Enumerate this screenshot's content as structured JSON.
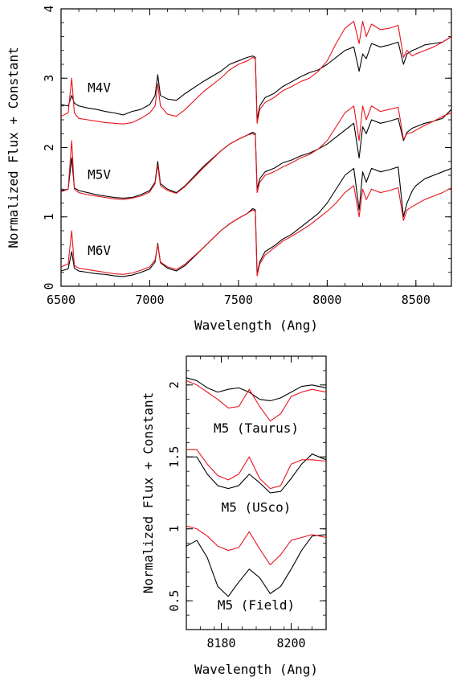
{
  "chart_data": [
    {
      "type": "line",
      "xlabel": "Wavelength (Ang)",
      "ylabel": "Normalized Flux + Constant",
      "xlim": [
        6500,
        8700
      ],
      "ylim": [
        0,
        4
      ],
      "xticks": [
        "6500",
        "7000",
        "7500",
        "8000",
        "8500"
      ],
      "yticks": [
        "0",
        "1",
        "2",
        "3",
        "4"
      ],
      "colors": {
        "black": "#000000",
        "red": "#e8141e"
      },
      "series": [
        {
          "label": "M4V",
          "label_x": 6650,
          "label_y": 2.8,
          "x": [
            6500,
            6540,
            6560,
            6575,
            6600,
            6650,
            6700,
            6750,
            6800,
            6850,
            6900,
            6950,
            7000,
            7030,
            7045,
            7060,
            7100,
            7150,
            7200,
            7300,
            7400,
            7450,
            7500,
            7550,
            7580,
            7595,
            7605,
            7620,
            7650,
            7700,
            7750,
            7800,
            7850,
            7900,
            7950,
            8000,
            8050,
            8100,
            8150,
            8180,
            8200,
            8220,
            8250,
            8300,
            8350,
            8400,
            8430,
            8450,
            8480,
            8500,
            8550,
            8600,
            8650,
            8700
          ],
          "black": [
            2.62,
            2.6,
            2.75,
            2.64,
            2.6,
            2.57,
            2.55,
            2.52,
            2.5,
            2.47,
            2.52,
            2.55,
            2.62,
            2.75,
            3.05,
            2.75,
            2.7,
            2.68,
            2.78,
            2.95,
            3.1,
            3.2,
            3.25,
            3.3,
            3.32,
            3.3,
            2.4,
            2.6,
            2.72,
            2.78,
            2.88,
            2.95,
            3.02,
            3.08,
            3.12,
            3.2,
            3.3,
            3.4,
            3.45,
            3.1,
            3.35,
            3.28,
            3.5,
            3.45,
            3.48,
            3.52,
            3.2,
            3.35,
            3.4,
            3.42,
            3.48,
            3.5,
            3.52,
            3.6
          ],
          "red": [
            2.45,
            2.5,
            3.0,
            2.5,
            2.42,
            2.4,
            2.38,
            2.36,
            2.35,
            2.34,
            2.36,
            2.42,
            2.5,
            2.6,
            2.92,
            2.6,
            2.48,
            2.45,
            2.55,
            2.8,
            3.0,
            3.12,
            3.2,
            3.25,
            3.3,
            3.28,
            2.35,
            2.55,
            2.65,
            2.72,
            2.82,
            2.88,
            2.95,
            3.0,
            3.1,
            3.25,
            3.5,
            3.72,
            3.82,
            3.5,
            3.82,
            3.6,
            3.78,
            3.7,
            3.72,
            3.76,
            3.3,
            3.4,
            3.32,
            3.35,
            3.4,
            3.45,
            3.52,
            3.6
          ]
        },
        {
          "label": "M5V",
          "label_x": 6650,
          "label_y": 1.55,
          "x": [
            6500,
            6540,
            6560,
            6575,
            6600,
            6650,
            6700,
            6750,
            6800,
            6850,
            6900,
            6950,
            7000,
            7030,
            7045,
            7060,
            7100,
            7150,
            7200,
            7300,
            7400,
            7450,
            7500,
            7550,
            7580,
            7595,
            7605,
            7620,
            7650,
            7700,
            7750,
            7800,
            7850,
            7900,
            7950,
            8000,
            8050,
            8100,
            8150,
            8180,
            8200,
            8220,
            8250,
            8300,
            8350,
            8400,
            8430,
            8450,
            8480,
            8500,
            8550,
            8600,
            8650,
            8700
          ],
          "black": [
            1.38,
            1.4,
            1.85,
            1.42,
            1.38,
            1.35,
            1.32,
            1.3,
            1.28,
            1.27,
            1.28,
            1.32,
            1.38,
            1.5,
            1.8,
            1.48,
            1.4,
            1.35,
            1.45,
            1.72,
            1.95,
            2.05,
            2.12,
            2.18,
            2.22,
            2.2,
            1.4,
            1.55,
            1.65,
            1.7,
            1.78,
            1.82,
            1.88,
            1.92,
            1.98,
            2.05,
            2.15,
            2.25,
            2.35,
            1.85,
            2.3,
            2.2,
            2.4,
            2.35,
            2.38,
            2.42,
            2.1,
            2.22,
            2.28,
            2.3,
            2.35,
            2.38,
            2.42,
            2.55
          ],
          "red": [
            1.36,
            1.4,
            2.1,
            1.4,
            1.35,
            1.32,
            1.3,
            1.28,
            1.26,
            1.25,
            1.27,
            1.3,
            1.36,
            1.48,
            1.75,
            1.45,
            1.38,
            1.34,
            1.44,
            1.7,
            1.95,
            2.05,
            2.12,
            2.18,
            2.2,
            2.18,
            1.35,
            1.5,
            1.6,
            1.65,
            1.72,
            1.78,
            1.85,
            1.9,
            1.98,
            2.1,
            2.3,
            2.5,
            2.6,
            2.1,
            2.6,
            2.4,
            2.6,
            2.52,
            2.55,
            2.58,
            2.12,
            2.2,
            2.22,
            2.25,
            2.32,
            2.38,
            2.45,
            2.5
          ]
        },
        {
          "label": "M6V",
          "label_x": 6650,
          "label_y": 0.45,
          "x": [
            6500,
            6540,
            6560,
            6575,
            6600,
            6650,
            6700,
            6750,
            6800,
            6850,
            6900,
            6950,
            7000,
            7030,
            7045,
            7060,
            7100,
            7150,
            7200,
            7300,
            7400,
            7450,
            7500,
            7550,
            7580,
            7595,
            7605,
            7620,
            7650,
            7700,
            7750,
            7800,
            7850,
            7900,
            7950,
            8000,
            8050,
            8100,
            8150,
            8180,
            8200,
            8220,
            8250,
            8300,
            8350,
            8400,
            8430,
            8450,
            8480,
            8500,
            8550,
            8600,
            8650,
            8700
          ],
          "black": [
            0.22,
            0.25,
            0.5,
            0.26,
            0.22,
            0.2,
            0.18,
            0.17,
            0.15,
            0.14,
            0.16,
            0.2,
            0.25,
            0.35,
            0.62,
            0.34,
            0.26,
            0.22,
            0.3,
            0.55,
            0.8,
            0.9,
            0.98,
            1.05,
            1.12,
            1.1,
            0.18,
            0.35,
            0.5,
            0.58,
            0.68,
            0.75,
            0.85,
            0.95,
            1.05,
            1.2,
            1.4,
            1.6,
            1.7,
            1.1,
            1.65,
            1.5,
            1.7,
            1.65,
            1.68,
            1.72,
            1.0,
            1.2,
            1.38,
            1.45,
            1.55,
            1.6,
            1.65,
            1.7
          ],
          "red": [
            0.28,
            0.32,
            0.8,
            0.3,
            0.26,
            0.24,
            0.22,
            0.2,
            0.18,
            0.17,
            0.19,
            0.23,
            0.28,
            0.38,
            0.6,
            0.35,
            0.28,
            0.24,
            0.32,
            0.55,
            0.8,
            0.9,
            0.98,
            1.05,
            1.1,
            1.08,
            0.15,
            0.32,
            0.45,
            0.55,
            0.65,
            0.72,
            0.8,
            0.88,
            0.98,
            1.08,
            1.2,
            1.35,
            1.45,
            1.0,
            1.4,
            1.25,
            1.4,
            1.35,
            1.38,
            1.42,
            0.95,
            1.1,
            1.15,
            1.18,
            1.25,
            1.3,
            1.35,
            1.42
          ]
        }
      ]
    },
    {
      "type": "line",
      "xlabel": "Wavelength (Ang)",
      "ylabel": "Normalized Flux + Constant",
      "xlim": [
        8170,
        8210
      ],
      "ylim": [
        0.3,
        2.2
      ],
      "xticks": [
        "8180",
        "8200"
      ],
      "yticks": [
        "0.5",
        "1",
        "1.5",
        "2"
      ],
      "colors": {
        "black": "#000000",
        "red": "#e8141e"
      },
      "series": [
        {
          "label": "M5 (Taurus)",
          "label_x": 8190,
          "label_y": 1.67,
          "x": [
            8170,
            8173,
            8176,
            8179,
            8182,
            8185,
            8188,
            8191,
            8194,
            8197,
            8200,
            8203,
            8206,
            8210
          ],
          "black": [
            2.05,
            2.03,
            1.98,
            1.95,
            1.97,
            1.98,
            1.95,
            1.9,
            1.89,
            1.91,
            1.95,
            1.99,
            2.0,
            1.98
          ],
          "red": [
            2.03,
            2.0,
            1.95,
            1.9,
            1.84,
            1.85,
            1.97,
            1.85,
            1.75,
            1.8,
            1.92,
            1.95,
            1.97,
            1.95
          ]
        },
        {
          "label": "M5 (USco)",
          "label_x": 8190,
          "label_y": 1.12,
          "x": [
            8170,
            8173,
            8176,
            8179,
            8182,
            8185,
            8188,
            8191,
            8194,
            8197,
            8200,
            8203,
            8206,
            8210
          ],
          "black": [
            1.5,
            1.5,
            1.38,
            1.3,
            1.28,
            1.3,
            1.38,
            1.32,
            1.25,
            1.26,
            1.35,
            1.45,
            1.52,
            1.48
          ],
          "red": [
            1.55,
            1.55,
            1.45,
            1.37,
            1.34,
            1.38,
            1.5,
            1.35,
            1.28,
            1.3,
            1.45,
            1.48,
            1.48,
            1.47
          ]
        },
        {
          "label": "M5 (Field)",
          "label_x": 8190,
          "label_y": 0.44,
          "x": [
            8170,
            8173,
            8176,
            8179,
            8182,
            8185,
            8188,
            8191,
            8194,
            8197,
            8200,
            8203,
            8206,
            8210
          ],
          "black": [
            0.88,
            0.92,
            0.8,
            0.6,
            0.53,
            0.63,
            0.72,
            0.66,
            0.55,
            0.6,
            0.72,
            0.85,
            0.95,
            0.96
          ],
          "red": [
            1.02,
            1.0,
            0.95,
            0.88,
            0.85,
            0.87,
            0.98,
            0.86,
            0.75,
            0.82,
            0.92,
            0.94,
            0.96,
            0.94
          ]
        }
      ]
    }
  ]
}
